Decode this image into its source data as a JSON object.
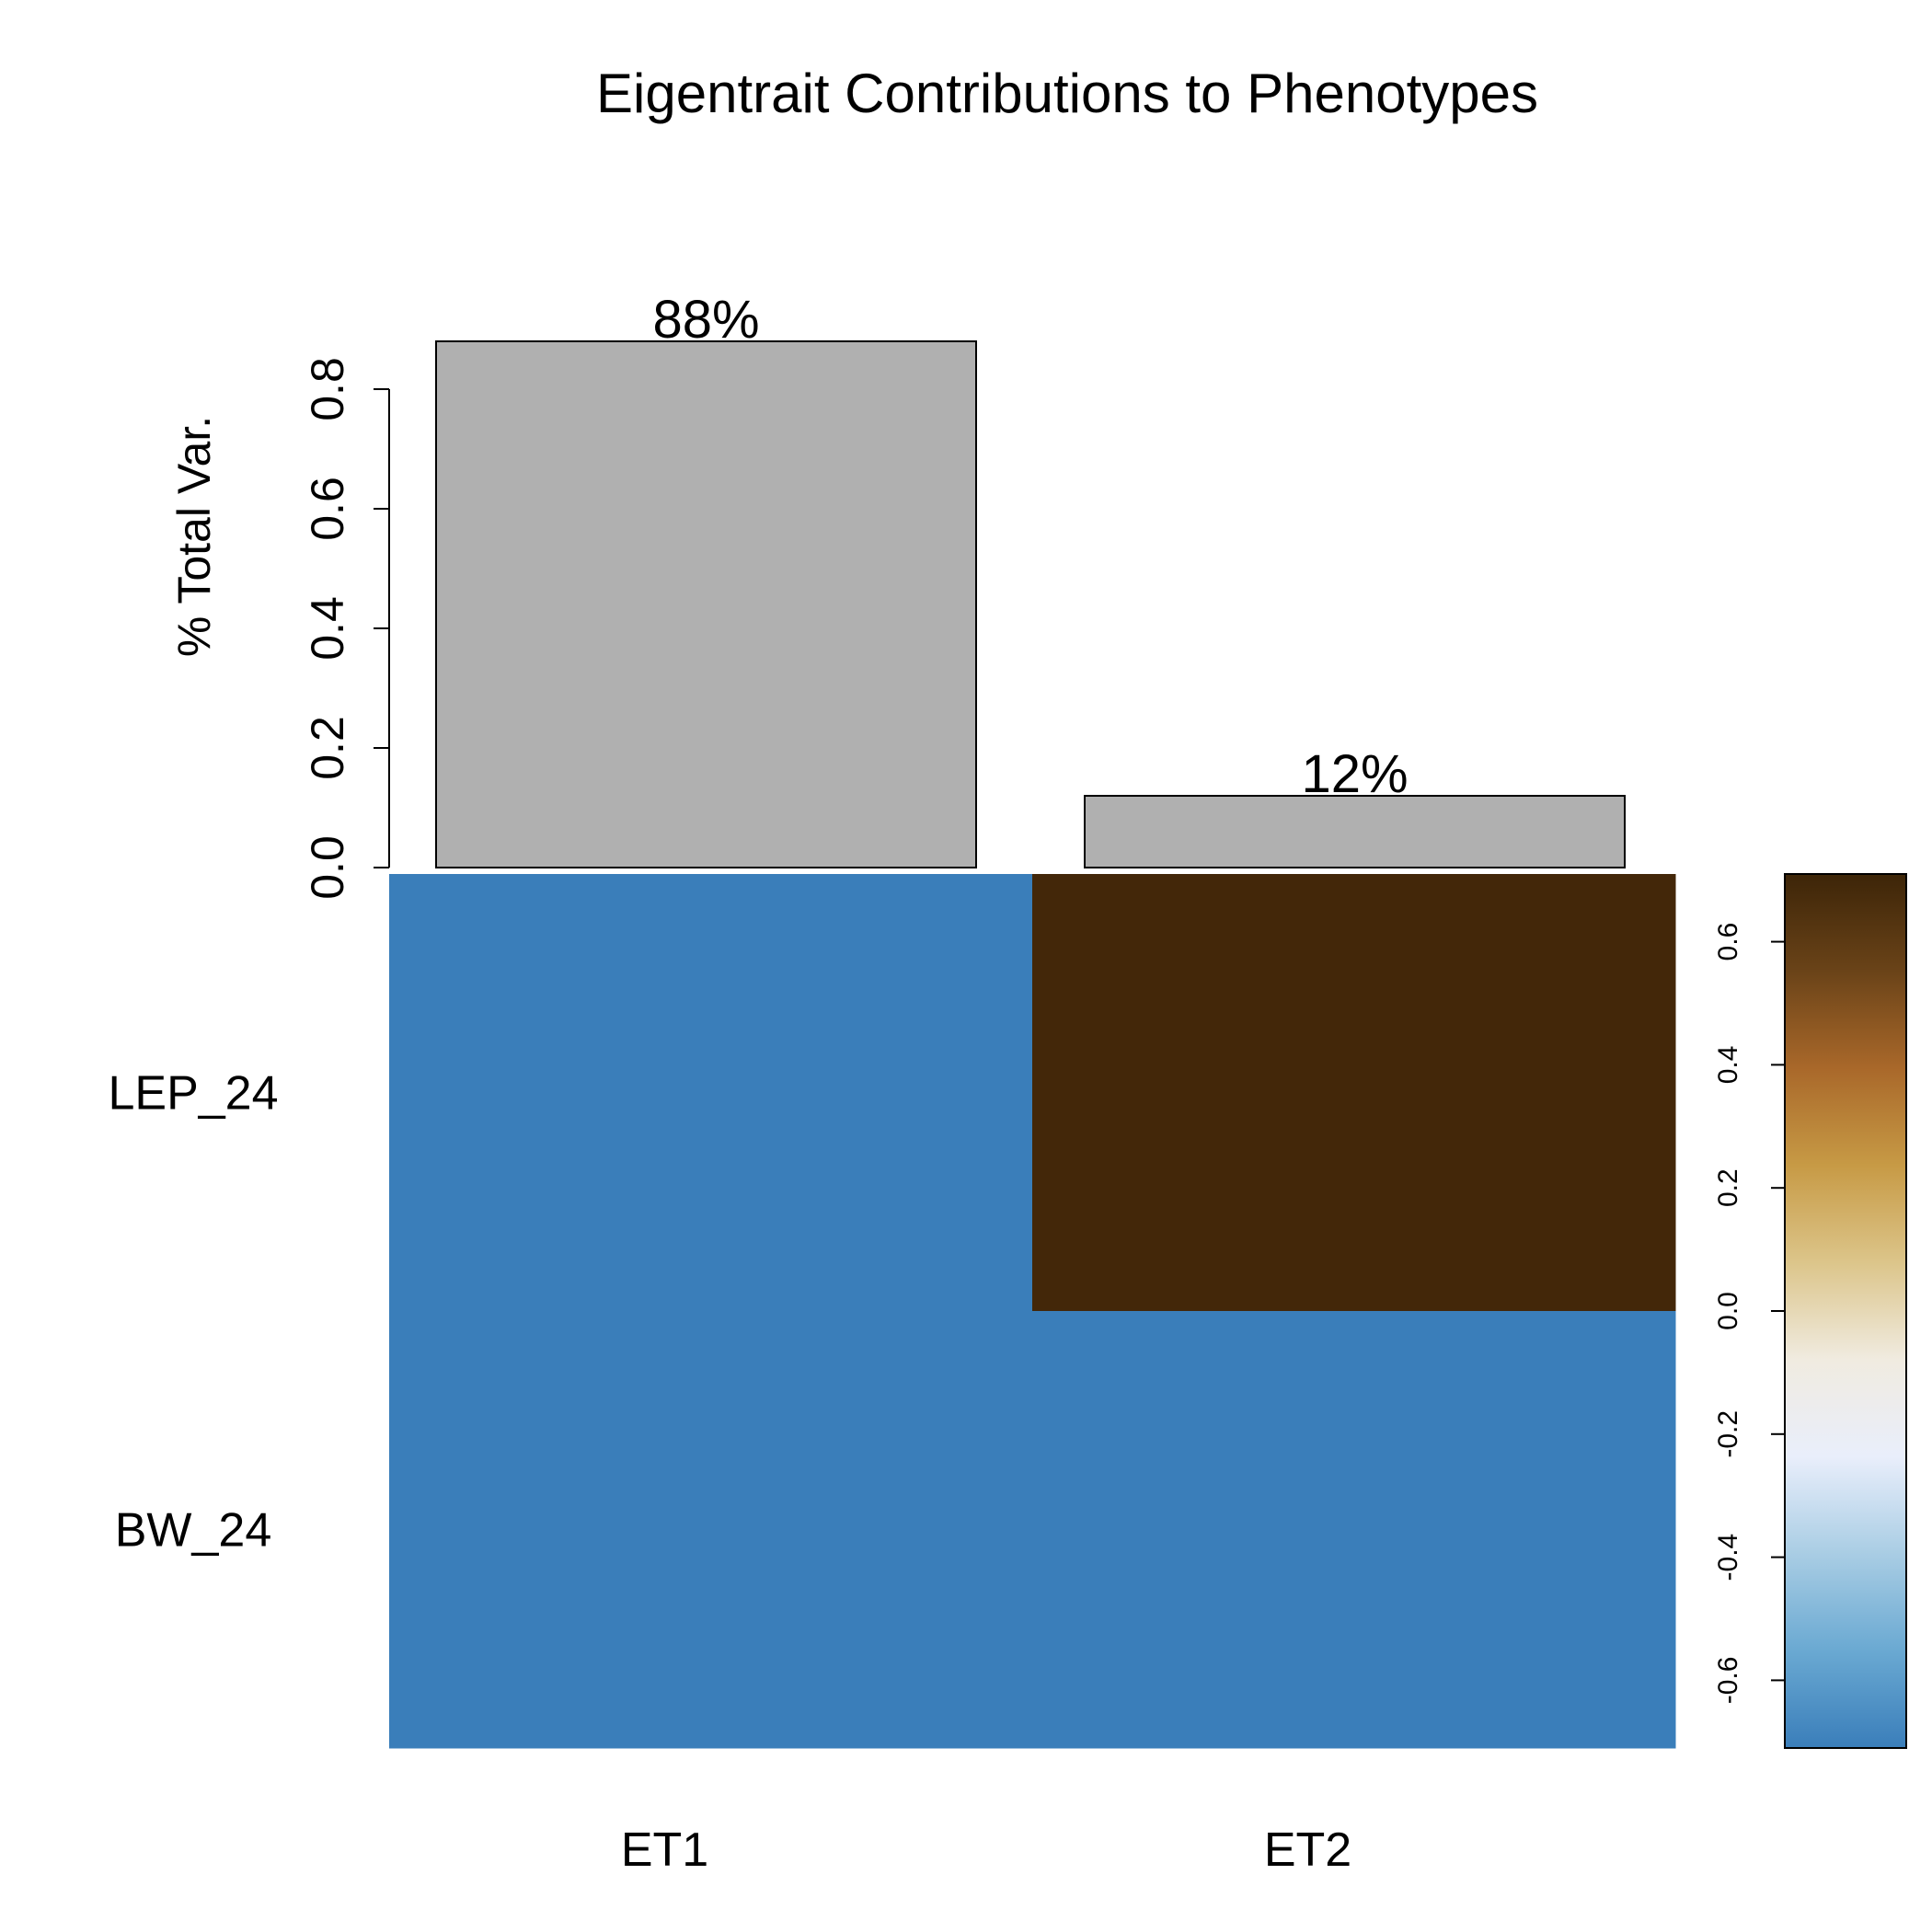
{
  "chart_data": {
    "title": "Eigentrait Contributions to Phenotypes",
    "bar_panel": {
      "type": "bar",
      "ylabel": "% Total Var.",
      "ylim": [
        0,
        0.8
      ],
      "yticks": [
        "0.0",
        "0.2",
        "0.4",
        "0.6",
        "0.8"
      ],
      "categories": [
        "ET1",
        "ET2"
      ],
      "values": [
        0.88,
        0.12
      ],
      "bar_labels": [
        "88%",
        "12%"
      ],
      "bar_color": "#B0B0B0"
    },
    "heatmap_panel": {
      "type": "heatmap",
      "columns": [
        "ET1",
        "ET2"
      ],
      "rows": [
        "LEP_24",
        "BW_24"
      ],
      "values": [
        [
          -0.71,
          0.71
        ],
        [
          -0.71,
          -0.71
        ]
      ],
      "colors": [
        [
          "#3A7EBA",
          "#432709"
        ],
        [
          "#3A7EBA",
          "#3A7EBA"
        ]
      ]
    },
    "colorbar": {
      "range": [
        -0.71,
        0.71
      ],
      "ticks": [
        "-0.6",
        "-0.4",
        "-0.2",
        "0.0",
        "0.2",
        "0.4",
        "0.6"
      ],
      "tick_values": [
        -0.6,
        -0.4,
        -0.2,
        0.0,
        0.2,
        0.4,
        0.6
      ],
      "colors": [
        "#3A7EBA",
        "#6AA9D2",
        "#A9CDE4",
        "#E9EEFB",
        "#F0EBE0",
        "#DCC58A",
        "#C79A45",
        "#A9682A",
        "#6A4318",
        "#3D2508"
      ]
    }
  }
}
